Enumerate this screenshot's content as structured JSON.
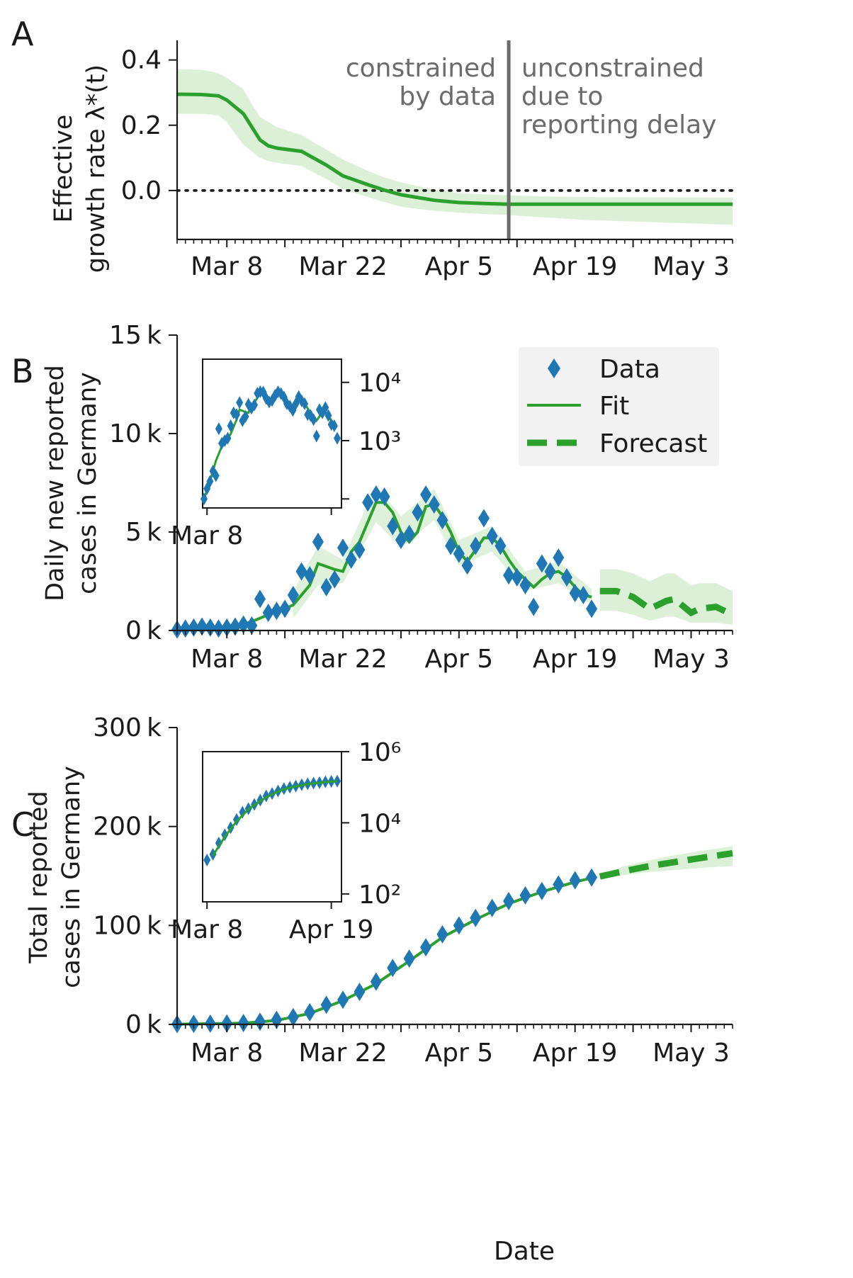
{
  "x_tick_labels": [
    "Mar 8",
    "Mar 22",
    "Apr 5",
    "Apr 19",
    "May 3"
  ],
  "xlabel": "Date",
  "colors": {
    "fit": "#2ca02c",
    "band": "#dbf0d6",
    "data": "#1f77b4",
    "vline": "#6b6b6b"
  },
  "chart_data": [
    {
      "panel": "A",
      "type": "line",
      "ylabel": [
        "Effective",
        "growth rate λ*(t)"
      ],
      "xlim": [
        "2020-03-02",
        "2020-05-08"
      ],
      "ylim": [
        -0.15,
        0.46
      ],
      "yticks": [
        0.0,
        0.2,
        0.4
      ],
      "ytick_labels": [
        "0.0",
        "0.2",
        "0.4"
      ],
      "zero_line": true,
      "vline_date": "2020-04-11",
      "annotation_left": [
        "constrained",
        "by data"
      ],
      "annotation_right": [
        "unconstrained",
        "due to",
        "reporting delay"
      ],
      "series": [
        {
          "x": [
            "2020-03-02",
            "2020-03-05",
            "2020-03-07",
            "2020-03-08",
            "2020-03-10",
            "2020-03-11",
            "2020-03-12",
            "2020-03-13",
            "2020-03-14",
            "2020-03-17",
            "2020-03-20",
            "2020-03-22",
            "2020-03-25",
            "2020-03-27",
            "2020-03-29",
            "2020-04-02",
            "2020-04-05",
            "2020-04-08",
            "2020-04-11",
            "2020-04-15",
            "2020-04-20",
            "2020-05-08"
          ],
          "values": [
            0.295,
            0.294,
            0.29,
            0.277,
            0.235,
            0.195,
            0.155,
            0.137,
            0.13,
            0.12,
            0.078,
            0.045,
            0.018,
            0.001,
            -0.013,
            -0.03,
            -0.037,
            -0.04,
            -0.042,
            -0.042,
            -0.042,
            -0.042
          ],
          "band_low": [
            0.235,
            0.235,
            0.23,
            0.21,
            0.14,
            0.12,
            0.1,
            0.09,
            0.085,
            0.075,
            0.035,
            0.005,
            -0.02,
            -0.035,
            -0.05,
            -0.062,
            -0.068,
            -0.072,
            -0.075,
            -0.082,
            -0.09,
            -0.105
          ],
          "band_high": [
            0.372,
            0.37,
            0.36,
            0.345,
            0.31,
            0.265,
            0.225,
            0.21,
            0.195,
            0.17,
            0.125,
            0.095,
            0.06,
            0.04,
            0.025,
            0.002,
            -0.008,
            -0.012,
            -0.015,
            -0.018,
            -0.02,
            -0.022
          ]
        }
      ]
    },
    {
      "panel": "B",
      "type": "scatter",
      "ylabel": [
        "Daily new reported",
        "cases in Germany"
      ],
      "xlim": [
        "2020-03-02",
        "2020-05-08"
      ],
      "ylim": [
        0,
        15000
      ],
      "yticks": [
        0,
        5000,
        10000,
        15000
      ],
      "ytick_labels": [
        "0 k",
        "5 k",
        "10 k",
        "15 k"
      ],
      "legend_position": "top-right",
      "legend": [
        "Data",
        "Fit",
        "Forecast"
      ],
      "data": {
        "x": [
          "2020-03-02",
          "2020-03-03",
          "2020-03-04",
          "2020-03-05",
          "2020-03-06",
          "2020-03-07",
          "2020-03-08",
          "2020-03-09",
          "2020-03-10",
          "2020-03-11",
          "2020-03-12",
          "2020-03-13",
          "2020-03-14",
          "2020-03-15",
          "2020-03-16",
          "2020-03-17",
          "2020-03-18",
          "2020-03-19",
          "2020-03-20",
          "2020-03-21",
          "2020-03-22",
          "2020-03-23",
          "2020-03-24",
          "2020-03-25",
          "2020-03-26",
          "2020-03-27",
          "2020-03-28",
          "2020-03-29",
          "2020-03-30",
          "2020-03-31",
          "2020-04-01",
          "2020-04-02",
          "2020-04-03",
          "2020-04-04",
          "2020-04-05",
          "2020-04-06",
          "2020-04-07",
          "2020-04-08",
          "2020-04-09",
          "2020-04-10",
          "2020-04-11",
          "2020-04-12",
          "2020-04-13",
          "2020-04-14",
          "2020-04-15",
          "2020-04-16",
          "2020-04-17",
          "2020-04-18",
          "2020-04-19",
          "2020-04-20",
          "2020-04-21"
        ],
        "values": [
          50,
          100,
          150,
          200,
          150,
          100,
          150,
          200,
          300,
          250,
          1600,
          900,
          1000,
          1100,
          1800,
          3000,
          2800,
          4500,
          2200,
          2600,
          4200,
          3600,
          4100,
          6500,
          6900,
          6800,
          5300,
          4600,
          4900,
          6000,
          6900,
          6400,
          5600,
          4300,
          3900,
          3300,
          4300,
          5700,
          4800,
          4300,
          2800,
          2700,
          2300,
          1200,
          3400,
          3000,
          3700,
          2700,
          1900,
          1800,
          1100
        ]
      },
      "fit": {
        "x": [
          "2020-03-02",
          "2020-03-07",
          "2020-03-09",
          "2020-03-11",
          "2020-03-13",
          "2020-03-15",
          "2020-03-16",
          "2020-03-18",
          "2020-03-19",
          "2020-03-21",
          "2020-03-22",
          "2020-03-23",
          "2020-03-24",
          "2020-03-26",
          "2020-03-27",
          "2020-03-28",
          "2020-03-29",
          "2020-03-30",
          "2020-03-31",
          "2020-04-01",
          "2020-04-02",
          "2020-04-03",
          "2020-04-04",
          "2020-04-05",
          "2020-04-06",
          "2020-04-07",
          "2020-04-08",
          "2020-04-09",
          "2020-04-10",
          "2020-04-11",
          "2020-04-12",
          "2020-04-13",
          "2020-04-14",
          "2020-04-15",
          "2020-04-16",
          "2020-04-17",
          "2020-04-18",
          "2020-04-19",
          "2020-04-20",
          "2020-04-21"
        ],
        "values": [
          50,
          100,
          200,
          450,
          800,
          1100,
          1300,
          2300,
          3400,
          3100,
          3000,
          4000,
          4500,
          6500,
          6500,
          6000,
          5000,
          4500,
          5000,
          6300,
          6400,
          5800,
          5000,
          4000,
          3500,
          4100,
          4700,
          4700,
          4300,
          3600,
          3000,
          2600,
          2200,
          2600,
          2900,
          3000,
          2700,
          2200,
          1800,
          1700
        ]
      },
      "forecast": {
        "x": [
          "2020-04-22",
          "2020-04-24",
          "2020-04-26",
          "2020-04-28",
          "2020-04-30",
          "2020-05-01",
          "2020-05-03",
          "2020-05-04",
          "2020-05-06",
          "2020-05-08"
        ],
        "values": [
          2000,
          2000,
          1700,
          1100,
          1500,
          1600,
          900,
          1100,
          1200,
          800
        ],
        "band_low": [
          1000,
          1000,
          800,
          500,
          700,
          700,
          400,
          400,
          400,
          300
        ],
        "band_high": [
          3100,
          3100,
          2900,
          2500,
          2900,
          2900,
          2300,
          2400,
          2400,
          2000
        ]
      },
      "fit_band": {
        "x": [
          "2020-03-16",
          "2020-03-19",
          "2020-03-22",
          "2020-03-26",
          "2020-03-29",
          "2020-04-02",
          "2020-04-05",
          "2020-04-09",
          "2020-04-13",
          "2020-04-17",
          "2020-04-21"
        ],
        "band_low": [
          600,
          2300,
          2400,
          5500,
          4200,
          5600,
          3300,
          4000,
          2000,
          2400,
          1300
        ],
        "band_high": [
          2000,
          4300,
          3600,
          7400,
          5800,
          7200,
          4600,
          5300,
          3000,
          3500,
          2100
        ]
      },
      "inset": {
        "yscale": "log",
        "ylim": [
          70,
          25000
        ],
        "yticks": [
          100,
          1000,
          10000
        ],
        "ytick_labels": [
          "",
          "10³",
          "10⁴"
        ],
        "xlim": [
          "2020-03-07",
          "2020-04-21"
        ],
        "xtick_labels": [
          "Mar 8"
        ]
      }
    },
    {
      "panel": "C",
      "type": "scatter",
      "ylabel": [
        "Total reported",
        "cases in Germany"
      ],
      "xlim": [
        "2020-03-02",
        "2020-05-08"
      ],
      "ylim": [
        0,
        300000
      ],
      "yticks": [
        0,
        100000,
        200000,
        300000
      ],
      "ytick_labels": [
        "0 k",
        "100 k",
        "200 k",
        "300 k"
      ],
      "data": {
        "x": [
          "2020-03-02",
          "2020-03-04",
          "2020-03-06",
          "2020-03-08",
          "2020-03-10",
          "2020-03-12",
          "2020-03-14",
          "2020-03-16",
          "2020-03-18",
          "2020-03-20",
          "2020-03-22",
          "2020-03-24",
          "2020-03-26",
          "2020-03-28",
          "2020-03-30",
          "2020-04-01",
          "2020-04-03",
          "2020-04-05",
          "2020-04-07",
          "2020-04-09",
          "2020-04-11",
          "2020-04-13",
          "2020-04-15",
          "2020-04-17",
          "2020-04-19",
          "2020-04-21"
        ],
        "values": [
          300,
          500,
          700,
          900,
          1300,
          2700,
          4600,
          7300,
          12300,
          19800,
          24900,
          32900,
          43200,
          57000,
          66500,
          77900,
          91000,
          100000,
          107600,
          117700,
          124600,
          130400,
          134800,
          141400,
          145700,
          148500
        ]
      },
      "fit": {
        "x": [
          "2020-03-02",
          "2020-03-10",
          "2020-03-14",
          "2020-03-18",
          "2020-03-22",
          "2020-03-26",
          "2020-03-30",
          "2020-04-03",
          "2020-04-07",
          "2020-04-11",
          "2020-04-15",
          "2020-04-19",
          "2020-04-21"
        ],
        "values": [
          200,
          1200,
          4000,
          11000,
          24000,
          41000,
          64000,
          88000,
          106000,
          122000,
          134000,
          144000,
          148000
        ]
      },
      "forecast": {
        "x": [
          "2020-04-22",
          "2020-04-25",
          "2020-04-28",
          "2020-05-01",
          "2020-05-04",
          "2020-05-08"
        ],
        "values": [
          149500,
          155000,
          160000,
          164000,
          168000,
          173000
        ],
        "band_low": [
          148000,
          151000,
          154000,
          156000,
          158000,
          160000
        ],
        "band_high": [
          151500,
          160000,
          166000,
          171000,
          175000,
          180000
        ]
      },
      "inset": {
        "yscale": "log",
        "ylim": [
          60,
          1000000
        ],
        "yticks": [
          100,
          10000,
          1000000
        ],
        "ytick_labels": [
          "10²",
          "10⁴",
          "10⁶"
        ],
        "xlim": [
          "2020-03-07",
          "2020-04-21"
        ],
        "xtick_labels": [
          "Mar 8",
          "Apr 19"
        ]
      }
    }
  ]
}
